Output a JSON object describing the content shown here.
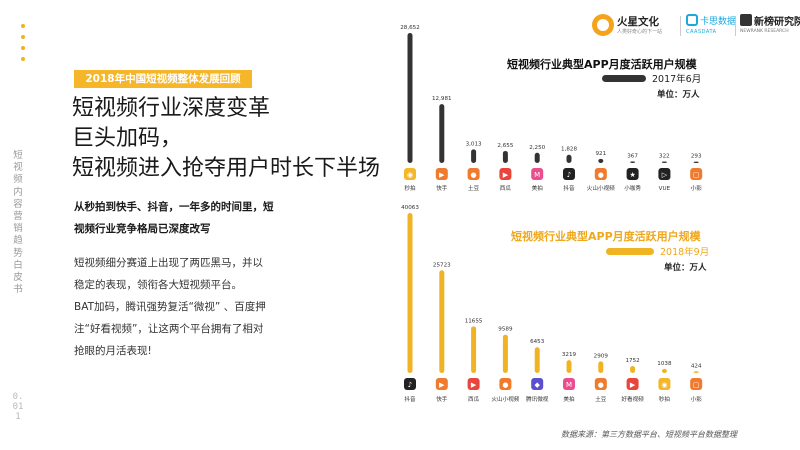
{
  "sidebar": {
    "vertical_title": "短视频内容营销趋势白皮书",
    "page_number": "0.011"
  },
  "logos": {
    "logo1_name": "火星文化",
    "logo1_slogan": "人类好奇心的下一站",
    "logo2_name": "卡思数据",
    "logo2_sub": "CAASDATA",
    "logo3_name": "新榜研究院",
    "logo3_sub": "NEWRANK RESEARCH"
  },
  "left": {
    "tag": "2018年中国短视频整体发展回顾",
    "headline": [
      "短视频行业深度变革",
      "巨头加码，",
      "短视频进入抢夺用户时长下半场"
    ],
    "subhead": [
      "从秒拍到快手、抖音，一年多的时间里，短",
      "视频行业竞争格局已深度改写"
    ],
    "paragraph1": "短视频细分赛道上出现了两匹黑马，并以稳定的表现，领衔各大短视频平台。",
    "paragraph2": "BAT加码，腾讯强势复活“微视” 、百度押注“好看视频”，让这两个平台拥有了相对抢眼的月活表现!"
  },
  "source": "数据来源：第三方数据平台、短视频平台数据整理",
  "colors": {
    "accent": "#f5b62a",
    "bar_2017": "#333333",
    "bar_2018": "#f0b323",
    "app_red": "#e8453c",
    "app_yellow": "#f5b62a",
    "app_orange": "#f07a2d",
    "app_black": "#222222",
    "app_pink": "#e94f8e",
    "app_purple": "#5b4fd0"
  },
  "chart_data": [
    {
      "type": "bar",
      "title": "短视频行业典型APP月度活跃用户规模",
      "date": "2017年6月",
      "unit": "单位：万人",
      "categories": [
        "秒拍",
        "快手",
        "土豆",
        "西瓜",
        "美拍",
        "抖音",
        "火山小视频",
        "小咖秀",
        "VUE",
        "小影"
      ],
      "values": [
        28652,
        12981,
        3013,
        2655,
        2250,
        1828,
        921,
        367,
        322,
        293
      ],
      "value_labels": [
        "28,652",
        "12,981",
        "3,013",
        "2,655",
        "2,250",
        "1,828",
        "921",
        "367",
        "322",
        "293"
      ],
      "icons": [
        {
          "name": "miaopai-icon",
          "color": "#f5b62a",
          "glyph": "◉"
        },
        {
          "name": "kuaishou-icon",
          "color": "#f07a2d",
          "glyph": "▶"
        },
        {
          "name": "tudou-icon",
          "color": "#f07a2d",
          "glyph": "●"
        },
        {
          "name": "xigua-icon",
          "color": "#e8453c",
          "glyph": "▶"
        },
        {
          "name": "meipai-icon",
          "color": "#e94f8e",
          "glyph": "M"
        },
        {
          "name": "douyin-icon",
          "color": "#222222",
          "glyph": "♪"
        },
        {
          "name": "huoshan-icon",
          "color": "#f07a2d",
          "glyph": "●"
        },
        {
          "name": "xiaokaxiu-icon",
          "color": "#222222",
          "glyph": "★"
        },
        {
          "name": "vue-icon",
          "color": "#222222",
          "glyph": "▷"
        },
        {
          "name": "xiaoying-icon",
          "color": "#f07a2d",
          "glyph": "▢"
        }
      ],
      "bar_color": "#333333"
    },
    {
      "type": "bar",
      "title": "短视频行业典型APP月度活跃用户规模",
      "date": "2018年9月",
      "unit": "单位：万人",
      "categories": [
        "抖音",
        "快手",
        "西瓜",
        "火山小视频",
        "腾讯微视",
        "美拍",
        "土豆",
        "好看视频",
        "秒拍",
        "小影"
      ],
      "values": [
        40063,
        25723,
        11655,
        9589,
        6453,
        3219,
        2909,
        1752,
        1038,
        424
      ],
      "value_labels": [
        "40063",
        "25723",
        "11655",
        "9589",
        "6453",
        "3219",
        "2909",
        "1752",
        "1038",
        "424"
      ],
      "icons": [
        {
          "name": "douyin-icon",
          "color": "#222222",
          "glyph": "♪"
        },
        {
          "name": "kuaishou-icon",
          "color": "#f07a2d",
          "glyph": "▶"
        },
        {
          "name": "xigua-icon",
          "color": "#e8453c",
          "glyph": "▶"
        },
        {
          "name": "huoshan-icon",
          "color": "#f07a2d",
          "glyph": "●"
        },
        {
          "name": "weishi-icon",
          "color": "#5b4fd0",
          "glyph": "◆"
        },
        {
          "name": "meipai-icon",
          "color": "#e94f8e",
          "glyph": "M"
        },
        {
          "name": "tudou-icon",
          "color": "#f07a2d",
          "glyph": "●"
        },
        {
          "name": "haokan-icon",
          "color": "#e8453c",
          "glyph": "▶"
        },
        {
          "name": "miaopai-icon",
          "color": "#f5b62a",
          "glyph": "◉"
        },
        {
          "name": "xiaoying-icon",
          "color": "#f07a2d",
          "glyph": "▢"
        }
      ],
      "bar_color": "#f0b323"
    }
  ]
}
